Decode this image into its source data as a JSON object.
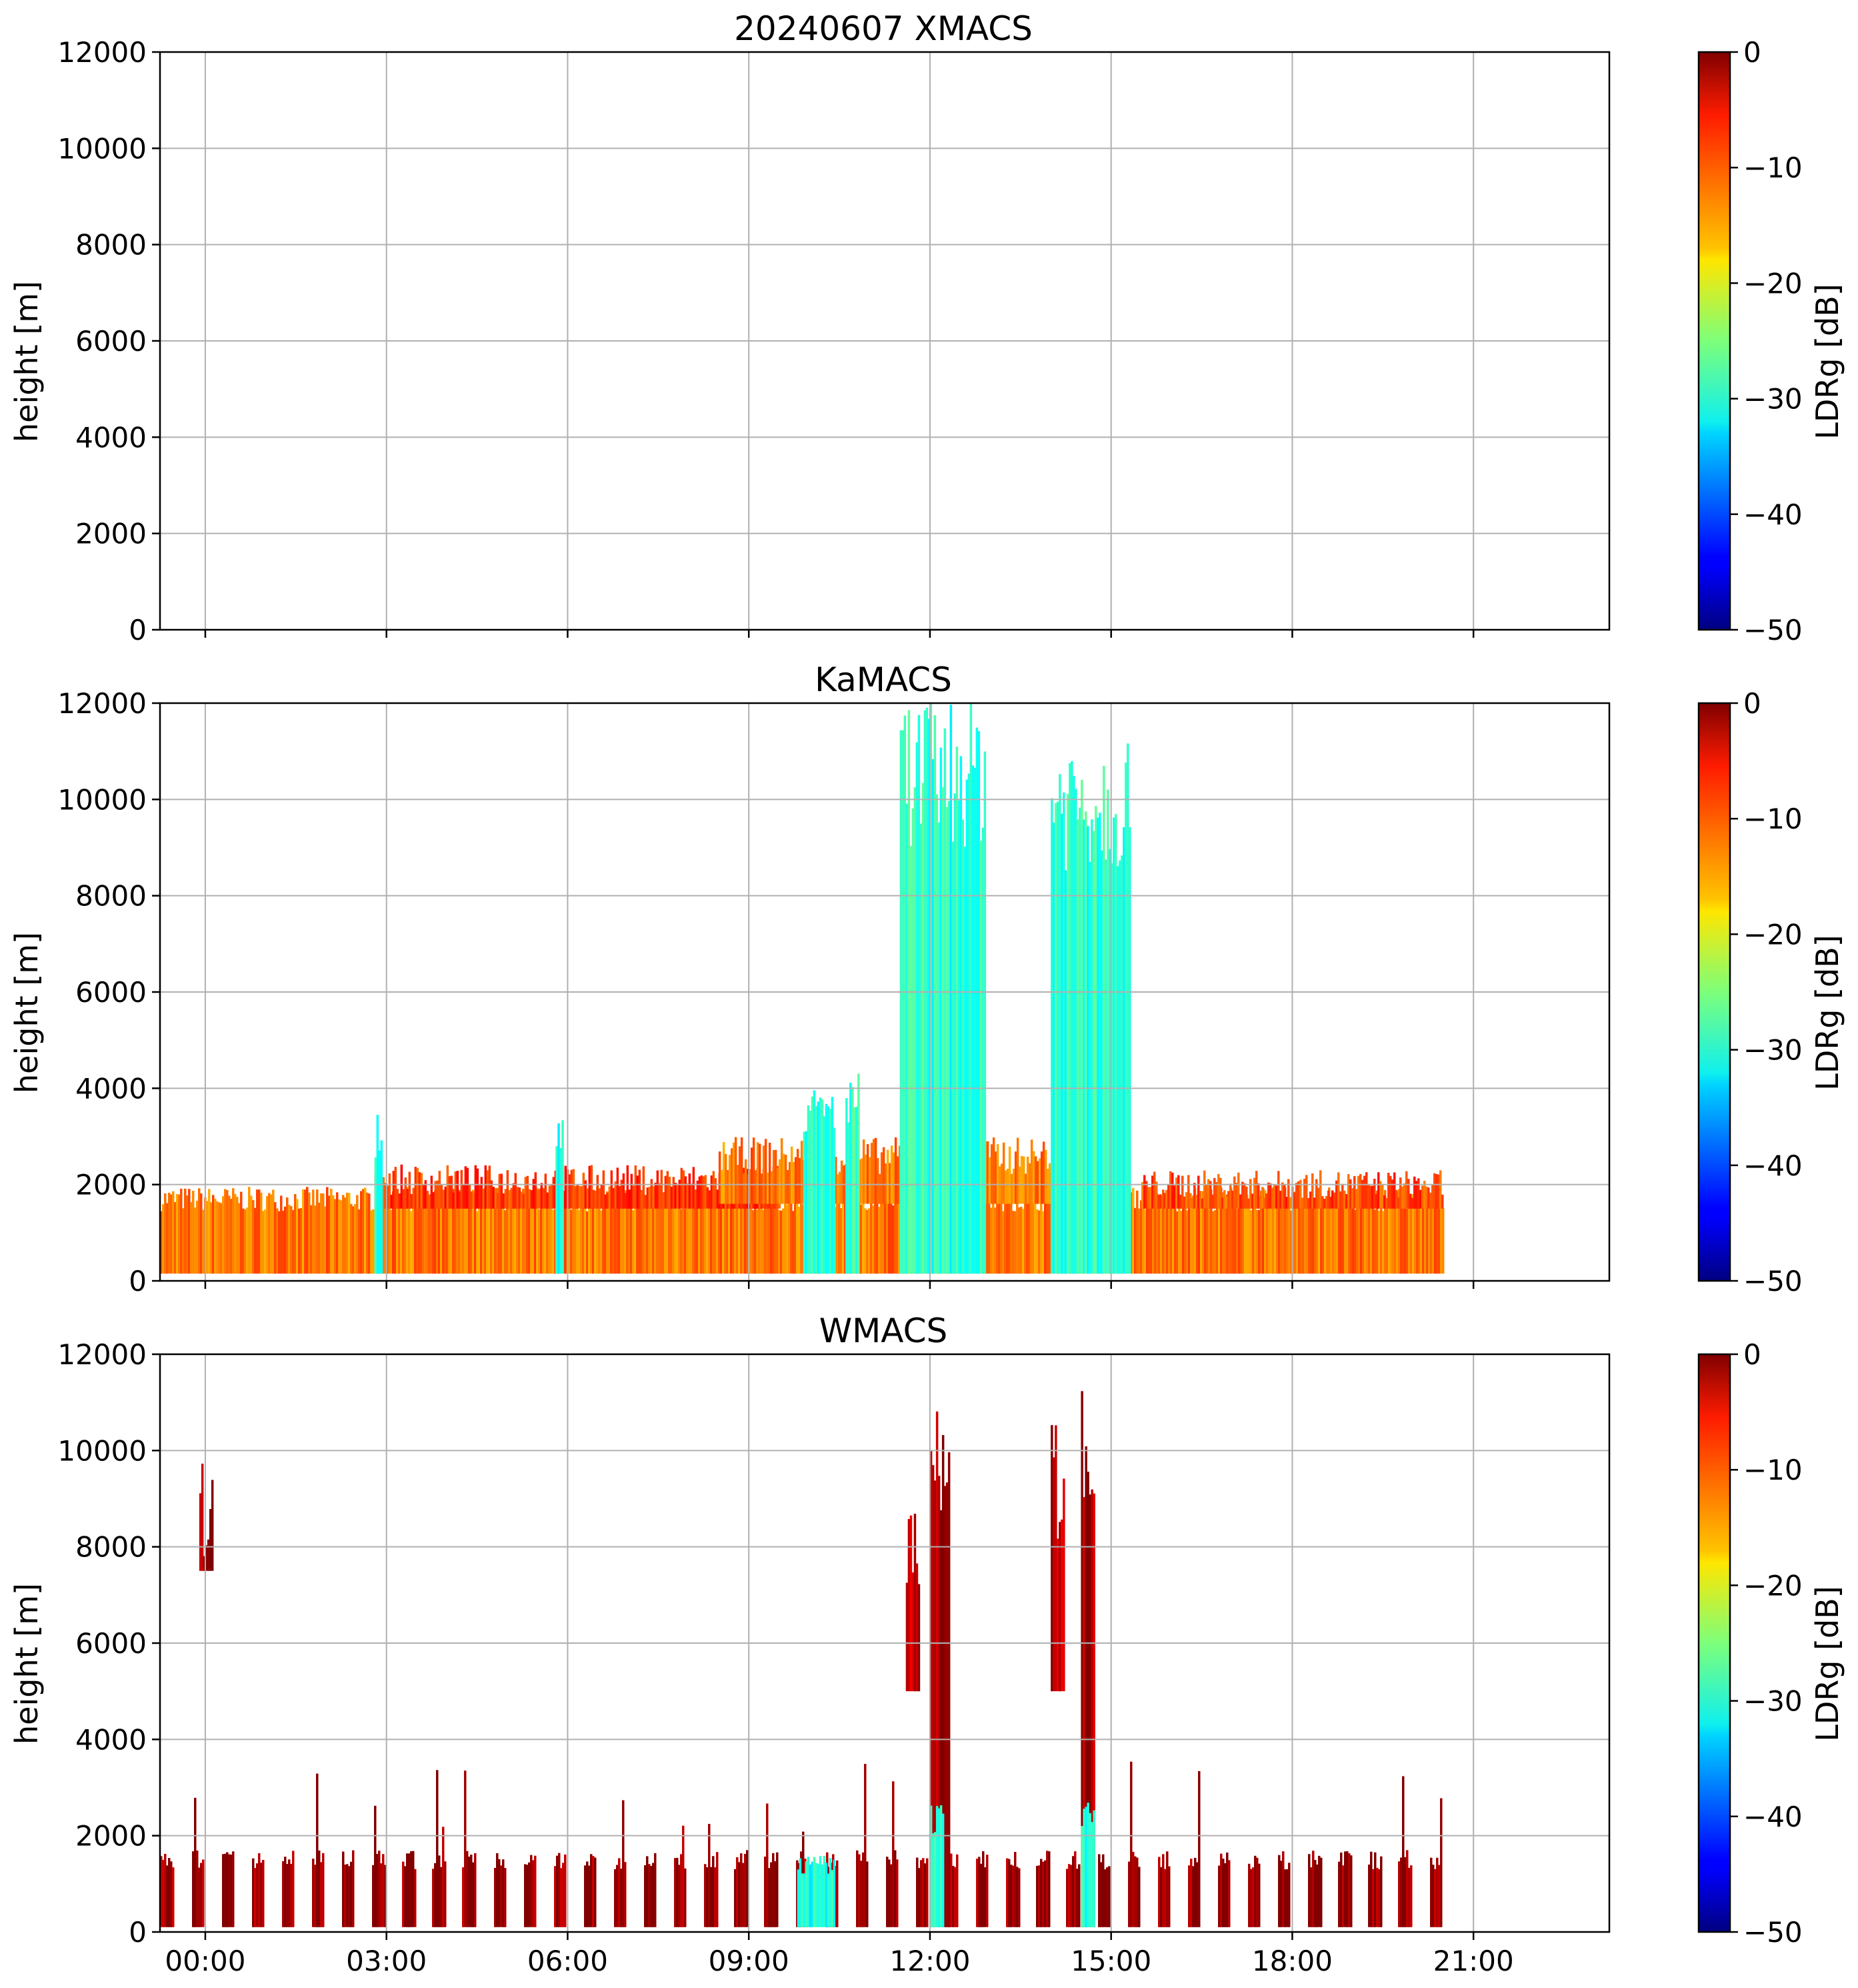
{
  "figure": {
    "title_top": "20240607 XMACS",
    "title_mid": "KaMACS",
    "title_bot": "WMACS",
    "ylabel": "height [m]",
    "cbar_label": "LDRg [dB]"
  },
  "colormap": "jet",
  "chart_data": [
    {
      "type": "heatmap",
      "title": "20240607 XMACS",
      "xlabel": "",
      "ylabel": "height [m]",
      "ylim": [
        0,
        12000
      ],
      "xlim_hours": [
        -0.75,
        23.25
      ],
      "x_ticks": [
        "00:00",
        "03:00",
        "06:00",
        "09:00",
        "12:00",
        "15:00",
        "18:00",
        "21:00"
      ],
      "y_ticks": [
        0,
        2000,
        4000,
        6000,
        8000,
        10000,
        12000
      ],
      "colorbar": {
        "label": "LDRg [dB]",
        "range": [
          -50,
          0
        ],
        "ticks": [
          "0",
          "−10",
          "−20",
          "−30",
          "−40",
          "−50"
        ]
      },
      "grid": true,
      "regions": []
    },
    {
      "type": "heatmap",
      "title": "KaMACS",
      "xlabel": "",
      "ylabel": "height [m]",
      "ylim": [
        0,
        12000
      ],
      "xlim_hours": [
        -0.75,
        23.25
      ],
      "x_ticks": [
        "00:00",
        "03:00",
        "06:00",
        "09:00",
        "12:00",
        "15:00",
        "18:00",
        "21:00"
      ],
      "y_ticks": [
        0,
        2000,
        4000,
        6000,
        8000,
        10000,
        12000
      ],
      "colorbar": {
        "label": "LDRg [dB]",
        "range": [
          -50,
          0
        ],
        "ticks": [
          "0",
          "−10",
          "−20",
          "−30",
          "−40",
          "−50"
        ]
      },
      "grid": true,
      "regions": [
        {
          "name": "boundary layer",
          "t0": -0.75,
          "t1": 20.5,
          "h0": 150,
          "h1": 1700,
          "ldr": -12
        },
        {
          "name": "boundary layer upper",
          "t0": 2.8,
          "t1": 9.5,
          "h0": 1500,
          "h1": 2100,
          "ldr": -9
        },
        {
          "name": "boundary layer upper",
          "t0": 8.5,
          "t1": 15.0,
          "h0": 1600,
          "h1": 2600,
          "ldr": -12
        },
        {
          "name": "boundary layer upper",
          "t0": 15.5,
          "t1": 20.5,
          "h0": 1500,
          "h1": 2000,
          "ldr": -10
        },
        {
          "name": "column 1",
          "t0": 11.5,
          "t1": 12.9,
          "h0": 150,
          "h1": 10600,
          "ldr": -29
        },
        {
          "name": "column 2",
          "t0": 14.0,
          "t1": 15.3,
          "h0": 150,
          "h1": 10000,
          "ldr": -29
        },
        {
          "name": "streak",
          "t0": 2.8,
          "t1": 2.9,
          "h0": 150,
          "h1": 3000,
          "ldr": -30
        },
        {
          "name": "streak",
          "t0": 5.8,
          "t1": 5.9,
          "h0": 150,
          "h1": 3200,
          "ldr": -30
        },
        {
          "name": "streak",
          "t0": 9.9,
          "t1": 10.4,
          "h0": 150,
          "h1": 3500,
          "ldr": -29
        },
        {
          "name": "streak",
          "t0": 10.6,
          "t1": 10.8,
          "h0": 150,
          "h1": 3800,
          "ldr": -29
        }
      ]
    },
    {
      "type": "heatmap",
      "title": "WMACS",
      "xlabel": "",
      "ylabel": "height [m]",
      "ylim": [
        0,
        12000
      ],
      "xlim_hours": [
        -0.75,
        23.25
      ],
      "x_ticks": [
        "00:00",
        "03:00",
        "06:00",
        "09:00",
        "12:00",
        "15:00",
        "18:00",
        "21:00"
      ],
      "y_ticks": [
        0,
        2000,
        4000,
        6000,
        8000,
        10000,
        12000
      ],
      "colorbar": {
        "label": "LDRg [dB]",
        "range": [
          -50,
          0
        ],
        "ticks": [
          "0",
          "−10",
          "−20",
          "−30",
          "−40",
          "−50"
        ]
      },
      "grid": true,
      "columns_note": "periodic vertical stripes roughly every 0.5 h up to ~1500–3500 m, LDRg near 0 dB",
      "regions": [
        {
          "name": "stripes low",
          "t0": -0.75,
          "t1": 20.5,
          "h0": 100,
          "h1": 1500,
          "ldr": -1
        },
        {
          "name": "column A",
          "t0": 11.6,
          "t1": 11.8,
          "h0": 5000,
          "h1": 8500,
          "ldr": -3
        },
        {
          "name": "column B",
          "t0": 12.0,
          "t1": 12.3,
          "h0": 100,
          "h1": 10000,
          "ldr": -2
        },
        {
          "name": "column C",
          "t0": 14.0,
          "t1": 14.2,
          "h0": 5000,
          "h1": 9500,
          "ldr": -3
        },
        {
          "name": "column D",
          "t0": 14.5,
          "t1": 14.7,
          "h0": 100,
          "h1": 10000,
          "ldr": -2
        },
        {
          "name": "cyan column",
          "t0": 12.0,
          "t1": 12.2,
          "h0": 100,
          "h1": 2400,
          "ldr": -30
        },
        {
          "name": "cyan column",
          "t0": 14.5,
          "t1": 14.7,
          "h0": 100,
          "h1": 2400,
          "ldr": -30
        },
        {
          "name": "cyan column",
          "t0": 9.8,
          "t1": 10.4,
          "h0": 100,
          "h1": 1400,
          "ldr": -30
        },
        {
          "name": "early blob",
          "t0": -0.1,
          "t1": 0.1,
          "h0": 7500,
          "h1": 8500,
          "ldr": -1
        }
      ]
    }
  ]
}
